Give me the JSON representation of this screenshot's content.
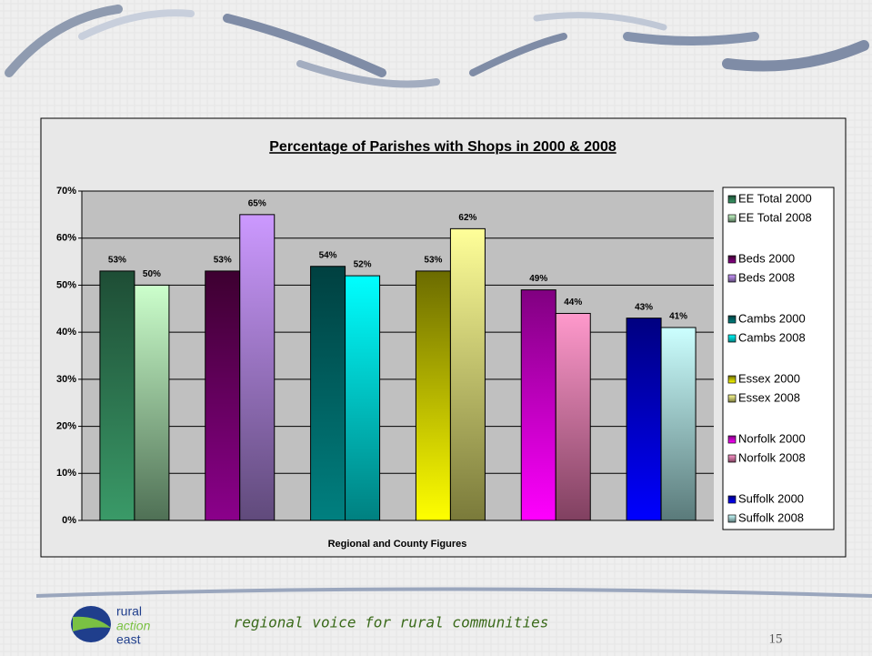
{
  "chart_data": {
    "type": "bar",
    "title": "Percentage of Parishes with Shops in 2000 & 2008",
    "x_label": "Regional and County Figures",
    "categories": [
      null,
      null,
      null,
      null,
      null,
      null
    ],
    "series": [
      {
        "name": "EE Total 2000",
        "color": "#1e4d35",
        "color_end": "#3a9a68",
        "values": [
          53,
          null,
          null,
          null,
          null,
          null
        ],
        "value_labels": [
          "53%",
          null,
          null,
          null,
          null,
          null
        ]
      },
      {
        "name": "EE Total 2008",
        "color": "#ccffcc",
        "color_end": "#4f7055",
        "values": [
          50,
          null,
          null,
          null,
          null,
          null
        ],
        "value_labels": [
          "50%",
          null,
          null,
          null,
          null,
          null
        ]
      },
      {
        "name": "Beds 2000",
        "color": "#3d0030",
        "color_end": "#8b008b",
        "values": [
          null,
          53,
          null,
          null,
          null,
          null
        ],
        "value_labels": [
          null,
          "53%",
          null,
          null,
          null,
          null
        ]
      },
      {
        "name": "Beds 2008",
        "color": "#cc99ff",
        "color_end": "#604a7b",
        "values": [
          null,
          65,
          null,
          null,
          null,
          null
        ],
        "value_labels": [
          null,
          "65%",
          null,
          null,
          null,
          null
        ]
      },
      {
        "name": "Cambs 2000",
        "color": "#004040",
        "color_end": "#008080",
        "values": [
          null,
          null,
          54,
          null,
          null,
          null
        ],
        "value_labels": [
          null,
          null,
          "54%",
          null,
          null,
          null
        ]
      },
      {
        "name": "Cambs 2008",
        "color": "#00ffff",
        "color_end": "#008080",
        "values": [
          null,
          null,
          52,
          null,
          null,
          null
        ],
        "value_labels": [
          null,
          null,
          "52%",
          null,
          null,
          null
        ]
      },
      {
        "name": "Essex 2000",
        "color": "#6b6b00",
        "color_end": "#ffff00",
        "values": [
          null,
          null,
          null,
          53,
          null,
          null
        ],
        "value_labels": [
          null,
          null,
          null,
          "53%",
          null,
          null
        ]
      },
      {
        "name": "Essex 2008",
        "color": "#ffff99",
        "color_end": "#7a7a3a",
        "values": [
          null,
          null,
          null,
          62,
          null,
          null
        ],
        "value_labels": [
          null,
          null,
          null,
          "62%",
          null,
          null
        ]
      },
      {
        "name": "Norfolk 2000",
        "color": "#800080",
        "color_end": "#ff00ff",
        "values": [
          null,
          null,
          null,
          null,
          49,
          null
        ],
        "value_labels": [
          null,
          null,
          null,
          null,
          "49%",
          null
        ]
      },
      {
        "name": "Norfolk 2008",
        "color": "#ff99cc",
        "color_end": "#804060",
        "values": [
          null,
          null,
          null,
          null,
          44,
          null
        ],
        "value_labels": [
          null,
          null,
          null,
          null,
          "44%",
          null
        ]
      },
      {
        "name": "Suffolk 2000",
        "color": "#000080",
        "color_end": "#0000ff",
        "values": [
          null,
          null,
          null,
          null,
          null,
          43
        ],
        "value_labels": [
          null,
          null,
          null,
          null,
          null,
          "43%"
        ]
      },
      {
        "name": "Suffolk 2008",
        "color": "#ccffff",
        "color_end": "#5a7a7a",
        "values": [
          null,
          null,
          null,
          null,
          null,
          41
        ],
        "value_labels": [
          null,
          null,
          null,
          null,
          null,
          "41%"
        ]
      }
    ],
    "ylim": [
      0,
      70
    ],
    "yticks": [
      {
        "value": 0,
        "label": "0%"
      },
      {
        "value": 10,
        "label": "10%"
      },
      {
        "value": 20,
        "label": "20%"
      },
      {
        "value": 30,
        "label": "30%"
      },
      {
        "value": 40,
        "label": "40%"
      },
      {
        "value": 50,
        "label": "50%"
      },
      {
        "value": 60,
        "label": "60%"
      },
      {
        "value": 70,
        "label": "70%"
      }
    ],
    "grid": true,
    "legend": "right"
  },
  "footer": {
    "tagline": "regional voice for rural communities",
    "page_number": "15",
    "logo": [
      "rural",
      "action",
      "east"
    ]
  }
}
